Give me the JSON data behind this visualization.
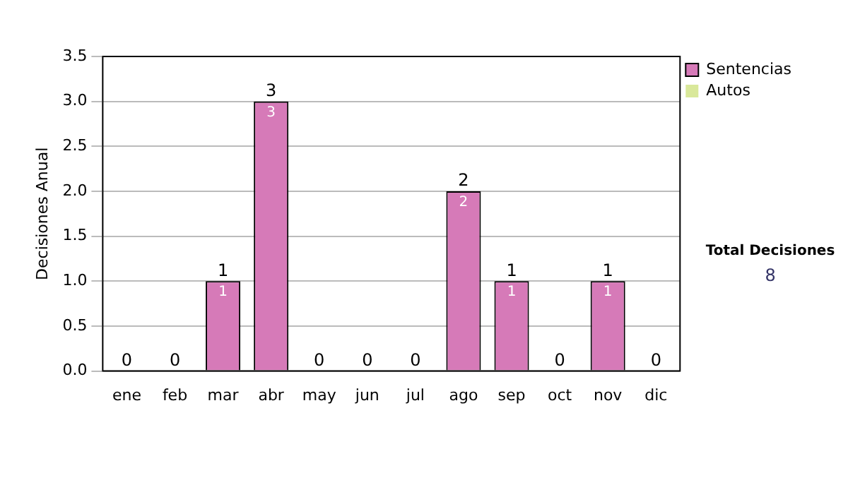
{
  "chart_data": {
    "type": "bar",
    "stacked": true,
    "ylabel": "Decisiones Anual",
    "categories": [
      "ene",
      "feb",
      "mar",
      "abr",
      "may",
      "jun",
      "jul",
      "ago",
      "sep",
      "oct",
      "nov",
      "dic"
    ],
    "series": [
      {
        "name": "Sentencias",
        "color": "#d67ab8",
        "values": [
          0,
          0,
          1,
          3,
          0,
          0,
          0,
          2,
          1,
          0,
          1,
          0
        ],
        "value_labels": [
          null,
          null,
          "1",
          "3",
          null,
          null,
          null,
          "2",
          "1",
          null,
          "1",
          null
        ]
      },
      {
        "name": "Autos",
        "color": "#d9e89a",
        "values": [
          0,
          0,
          0,
          0,
          0,
          0,
          0,
          0,
          0,
          0,
          0,
          0
        ]
      }
    ],
    "totals": [
      "0",
      "0",
      "1",
      "3",
      "0",
      "0",
      "0",
      "2",
      "1",
      "0",
      "1",
      "0"
    ],
    "ylim": [
      0,
      3.5
    ],
    "yticks": [
      {
        "value": 0,
        "label": "0.0"
      },
      0.5,
      {
        "value": 1,
        "label": "1.0"
      },
      1.5,
      {
        "value": 2,
        "label": "2.0"
      },
      2.5,
      {
        "value": 3,
        "label": "3.0"
      },
      3.5
    ],
    "grid": "y",
    "legend": "right",
    "annotations": [
      "Total Decisiones",
      "8"
    ]
  }
}
